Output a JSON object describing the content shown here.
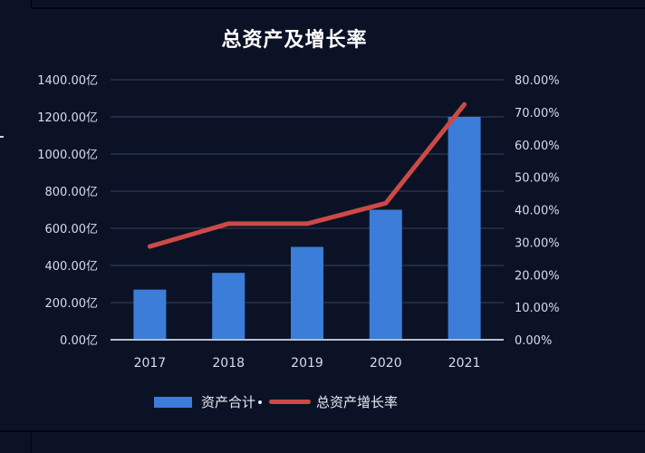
{
  "chart_data": {
    "type": "bar+line",
    "title": "总资产及增长率",
    "categories": [
      "2017",
      "2018",
      "2019",
      "2020",
      "2021"
    ],
    "series": [
      {
        "name": "资产合计",
        "type": "bar",
        "axis": "left",
        "unit": "亿",
        "color": "#3b7dd8",
        "values": [
          270,
          360,
          500,
          700,
          1200
        ]
      },
      {
        "name": "总资产增长率",
        "type": "line",
        "axis": "right",
        "unit": "%",
        "color": "#cc4a46",
        "values": [
          28.7,
          35.7,
          35.7,
          42.0,
          72.4
        ]
      }
    ],
    "left_axis": {
      "ylim": [
        0,
        1400
      ],
      "ticks": [
        "0.00亿",
        "200.00亿",
        "400.00亿",
        "600.00亿",
        "800.00亿",
        "1000.00亿",
        "1200.00亿",
        "1400.00亿"
      ]
    },
    "right_axis": {
      "ylim": [
        0,
        80
      ],
      "ticks": [
        "0.00%",
        "10.00%",
        "20.00%",
        "30.00%",
        "40.00%",
        "50.00%",
        "60.00%",
        "70.00%",
        "80.00%"
      ]
    },
    "xlabel": "",
    "ylabel": "",
    "grid": true,
    "legend_position": "bottom"
  },
  "legend": {
    "bar_label": "资产合计",
    "line_label": "总资产增长率"
  },
  "colors": {
    "background": "#0b1226",
    "bar": "#3b7dd8",
    "line": "#cc4a46",
    "grid": "#2f3a52",
    "text": "#d8dce6"
  }
}
